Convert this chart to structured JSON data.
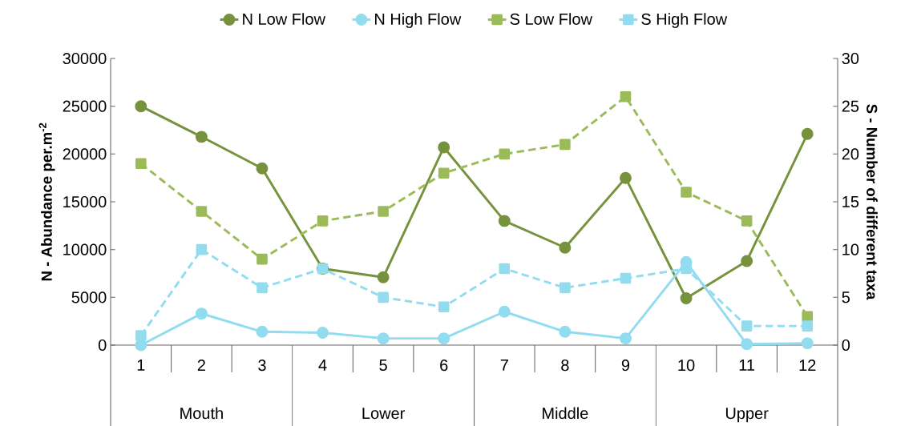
{
  "chart_data": {
    "type": "line",
    "categories": [
      "1",
      "2",
      "3",
      "4",
      "5",
      "6",
      "7",
      "8",
      "9",
      "10",
      "11",
      "12"
    ],
    "ylabel": "N - Abundance per.m$^{-2}$",
    "y2label": "S - Number of different taxa",
    "ylim": [
      0,
      30000
    ],
    "yticks": [
      0,
      5000,
      10000,
      15000,
      20000,
      25000,
      30000
    ],
    "y2lim": [
      0,
      30
    ],
    "y2ticks": [
      0,
      5,
      10,
      15,
      20,
      25,
      30
    ],
    "grid": false,
    "legend": "top",
    "annotations": [
      "Mouth",
      "Lower",
      "Middle",
      "Upper"
    ],
    "series": [
      {
        "name": "N Low Flow",
        "color": "#76923c",
        "marker": "circle",
        "line_style": "solid",
        "values": [
          25000,
          21800,
          18500,
          8000,
          7100,
          20700,
          13000,
          10200,
          17500,
          4900,
          8800,
          22100
        ]
      },
      {
        "name": "N High Flow",
        "color": "#92dcf0",
        "marker": "circle",
        "line_style": "solid",
        "values": [
          0,
          3300,
          1400,
          1300,
          700,
          700,
          3500,
          1400,
          700,
          8700,
          100,
          200
        ]
      },
      {
        "name": "S Low Flow",
        "color": "#9bbb59",
        "marker": "square",
        "line_style": "dashed",
        "axis": "y2",
        "values": [
          19,
          14,
          9,
          13,
          14,
          18,
          20,
          21,
          26,
          16,
          13,
          3
        ]
      },
      {
        "name": "S High Flow",
        "color": "#92dcf0",
        "marker": "square",
        "line_style": "dashed",
        "axis": "y2",
        "values": [
          1,
          10,
          6,
          8,
          5,
          4,
          8,
          6,
          7,
          8,
          2,
          2
        ]
      }
    ]
  }
}
